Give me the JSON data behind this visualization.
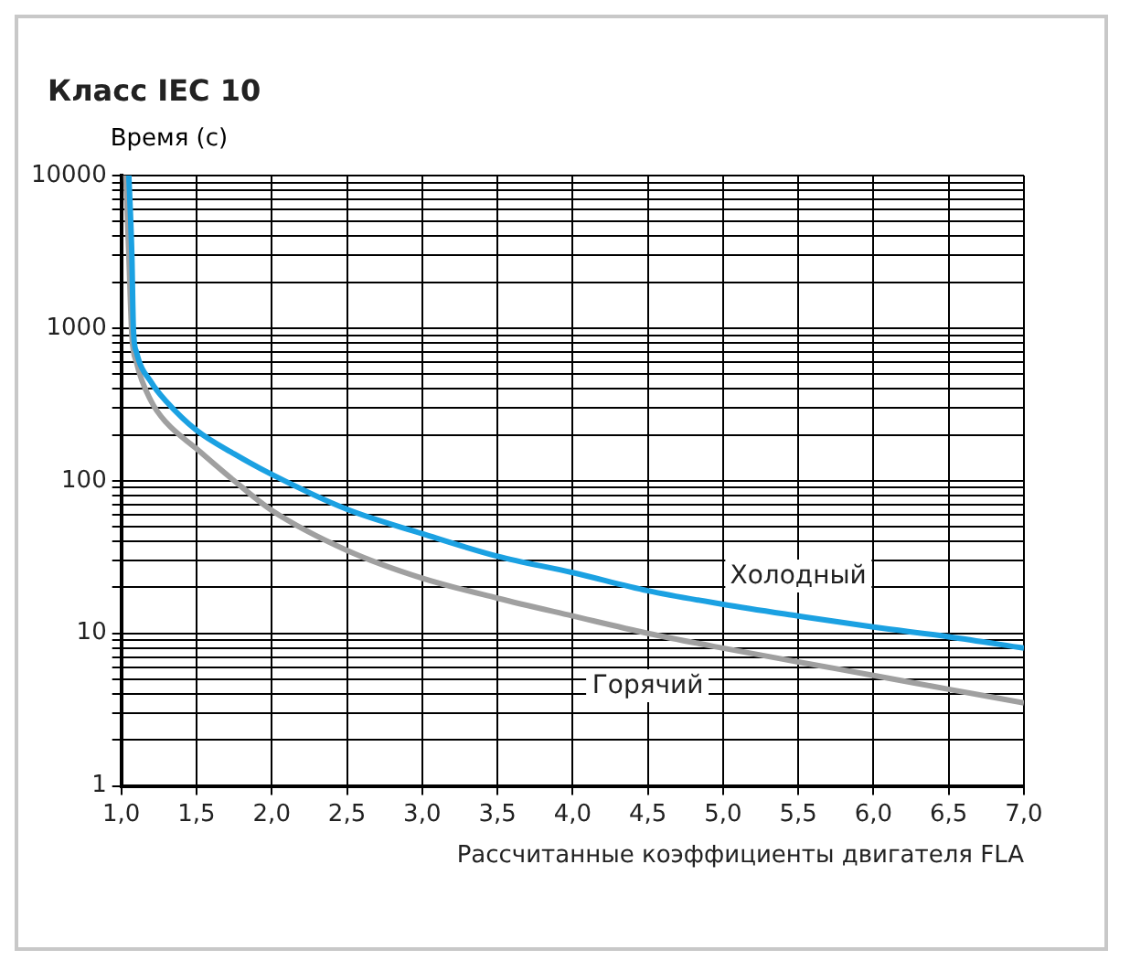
{
  "chart_data": {
    "type": "line",
    "title": "Класс IEC 10",
    "xlabel": "Рассчитанные коэффициенты двигателя FLA",
    "ylabel": "Время (с)",
    "series": [
      {
        "name": "Холодный",
        "color": "#1ba1e2",
        "x": [
          1.05,
          1.07,
          1.08,
          1.1,
          1.2,
          1.3,
          1.5,
          1.75,
          2.0,
          2.5,
          3.0,
          3.5,
          4.0,
          4.5,
          5.0,
          5.5,
          6.0,
          6.5,
          7.0
        ],
        "values": [
          10000,
          3000,
          1000,
          700,
          440,
          330,
          214,
          150,
          110,
          65,
          45,
          32,
          25,
          19,
          15.5,
          13,
          11,
          9.5,
          8
        ]
      },
      {
        "name": "Горячий",
        "color": "#a0a0a0",
        "x": [
          1.03,
          1.05,
          1.07,
          1.1,
          1.2,
          1.3,
          1.5,
          1.75,
          2.0,
          2.5,
          3.0,
          3.5,
          4.0,
          4.5,
          5.0,
          5.5,
          6.0,
          6.5,
          7.0
        ],
        "values": [
          10000,
          3000,
          900,
          600,
          330,
          240,
          162,
          100,
          64,
          35,
          23,
          17,
          13,
          10,
          8,
          6.5,
          5.3,
          4.3,
          3.5
        ]
      }
    ],
    "log": "y",
    "grid": true,
    "legend": false,
    "marker": "none",
    "line_style": "solid",
    "xlim": [
      1,
      7
    ],
    "xticks": [
      {
        "value": 1,
        "label": "1,0"
      },
      {
        "value": 1.5,
        "label": "1,5"
      },
      {
        "value": 2,
        "label": "2,0"
      },
      {
        "value": 2.5,
        "label": "2,5"
      },
      {
        "value": 3,
        "label": "3,0"
      },
      {
        "value": 3.5,
        "label": "3,5"
      },
      {
        "value": 4,
        "label": "4,0"
      },
      {
        "value": 4.5,
        "label": "4,5"
      },
      {
        "value": 5,
        "label": "5,0"
      },
      {
        "value": 5.5,
        "label": "5,5"
      },
      {
        "value": 6,
        "label": "6,0"
      },
      {
        "value": 6.5,
        "label": "6,5"
      },
      {
        "value": 7,
        "label": "7,0"
      }
    ],
    "ylim": [
      1,
      10000
    ],
    "yticks": [
      1,
      {
        "value": 2,
        "label": null
      },
      {
        "value": 3,
        "label": null
      },
      {
        "value": 4,
        "label": null
      },
      {
        "value": 5,
        "label": null
      },
      {
        "value": 6,
        "label": null
      },
      {
        "value": 7,
        "label": null
      },
      {
        "value": 8,
        "label": null
      },
      {
        "value": 9,
        "label": null
      },
      10,
      {
        "value": 20,
        "label": null
      },
      {
        "value": 30,
        "label": null
      },
      {
        "value": 40,
        "label": null
      },
      {
        "value": 50,
        "label": null
      },
      {
        "value": 60,
        "label": null
      },
      {
        "value": 70,
        "label": null
      },
      {
        "value": 80,
        "label": null
      },
      {
        "value": 90,
        "label": null
      },
      100,
      {
        "value": 200,
        "label": null
      },
      {
        "value": 300,
        "label": null
      },
      {
        "value": 400,
        "label": null
      },
      {
        "value": 500,
        "label": null
      },
      {
        "value": 600,
        "label": null
      },
      {
        "value": 700,
        "label": null
      },
      {
        "value": 800,
        "label": null
      },
      {
        "value": 900,
        "label": null
      },
      1000,
      {
        "value": 2000,
        "label": null
      },
      {
        "value": 3000,
        "label": null
      },
      {
        "value": 4000,
        "label": null
      },
      {
        "value": 5000,
        "label": null
      },
      {
        "value": 6000,
        "label": null
      },
      {
        "value": 7000,
        "label": null
      },
      {
        "value": 8000,
        "label": null
      },
      {
        "value": 9000,
        "label": null
      },
      10000
    ]
  }
}
